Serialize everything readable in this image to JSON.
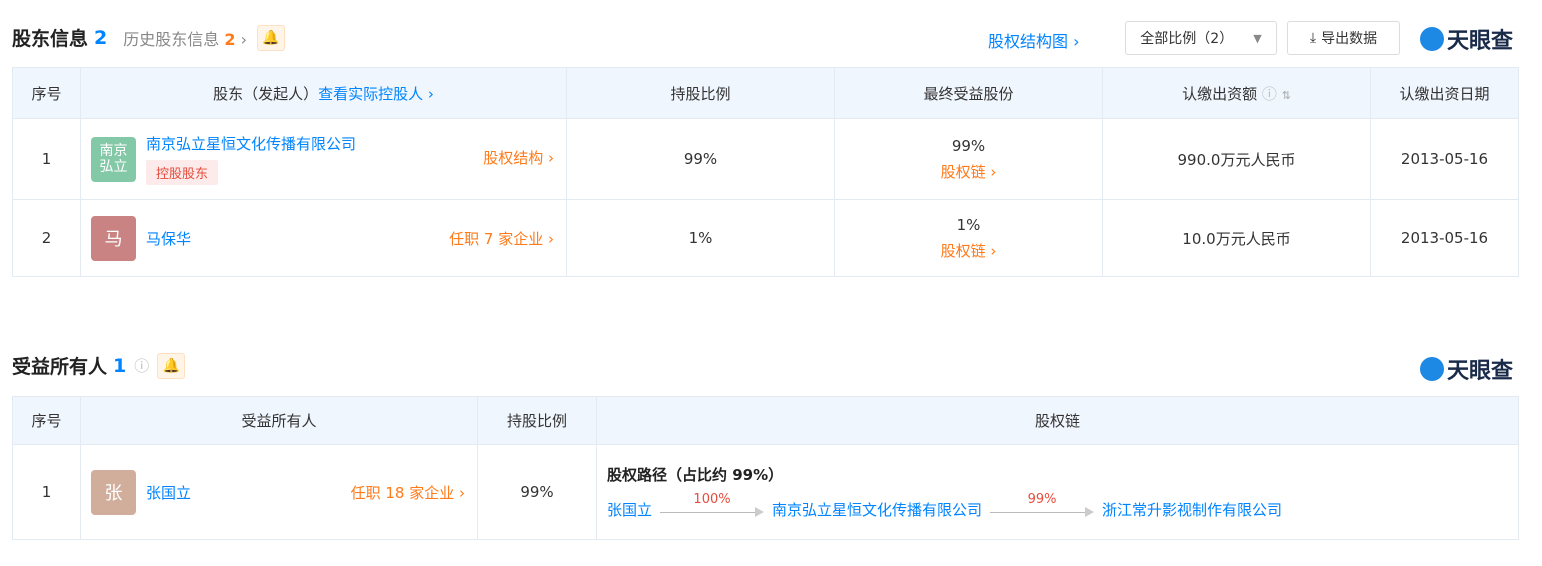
{
  "shareholders": {
    "title": "股东信息",
    "count": "2",
    "history_label": "历史股东信息",
    "history_count": "2",
    "structure_link": "股权结构图",
    "filter": "全部比例（2）",
    "export": "导出数据",
    "logo": "天眼查",
    "headers": [
      "序号",
      "股东（发起人）",
      "查看实际控股人",
      "持股比例",
      "最终受益股份",
      "认缴出资额",
      "认缴出资日期"
    ],
    "rows": [
      {
        "no": "1",
        "avatar": "南京弘立",
        "avatar_color": "#84c9a7",
        "name": "南京弘立星恒文化传播有限公司",
        "tag": "控股股东",
        "link": "股权结构",
        "ratio": "99%",
        "benefit": "99%",
        "benefit_link": "股权链",
        "amount": "990.0万元人民币",
        "date": "2013-05-16"
      },
      {
        "no": "2",
        "avatar": "马",
        "avatar_color": "#c98383",
        "name": "马保华",
        "link": "任职 7 家企业",
        "ratio": "1%",
        "benefit": "1%",
        "benefit_link": "股权链",
        "amount": "10.0万元人民币",
        "date": "2013-05-16"
      }
    ]
  },
  "beneficiaries": {
    "title": "受益所有人",
    "count": "1",
    "logo": "天眼查",
    "headers": [
      "序号",
      "受益所有人",
      "持股比例",
      "股权链"
    ],
    "rows": [
      {
        "no": "1",
        "avatar": "张",
        "avatar_color": "#d1ae9b",
        "name": "张国立",
        "link": "任职 18 家企业",
        "ratio": "99%",
        "path_title": "股权路径（占比约 99%）",
        "path": [
          {
            "name": "张国立"
          },
          {
            "pct": "100%"
          },
          {
            "name": "南京弘立星恒文化传播有限公司"
          },
          {
            "pct": "99%"
          },
          {
            "name": "浙江常升影视制作有限公司"
          }
        ]
      }
    ]
  },
  "colors": {
    "accent": "#0084ff",
    "orange": "#ff7a1a",
    "header_bg": "#f0f6fd"
  }
}
